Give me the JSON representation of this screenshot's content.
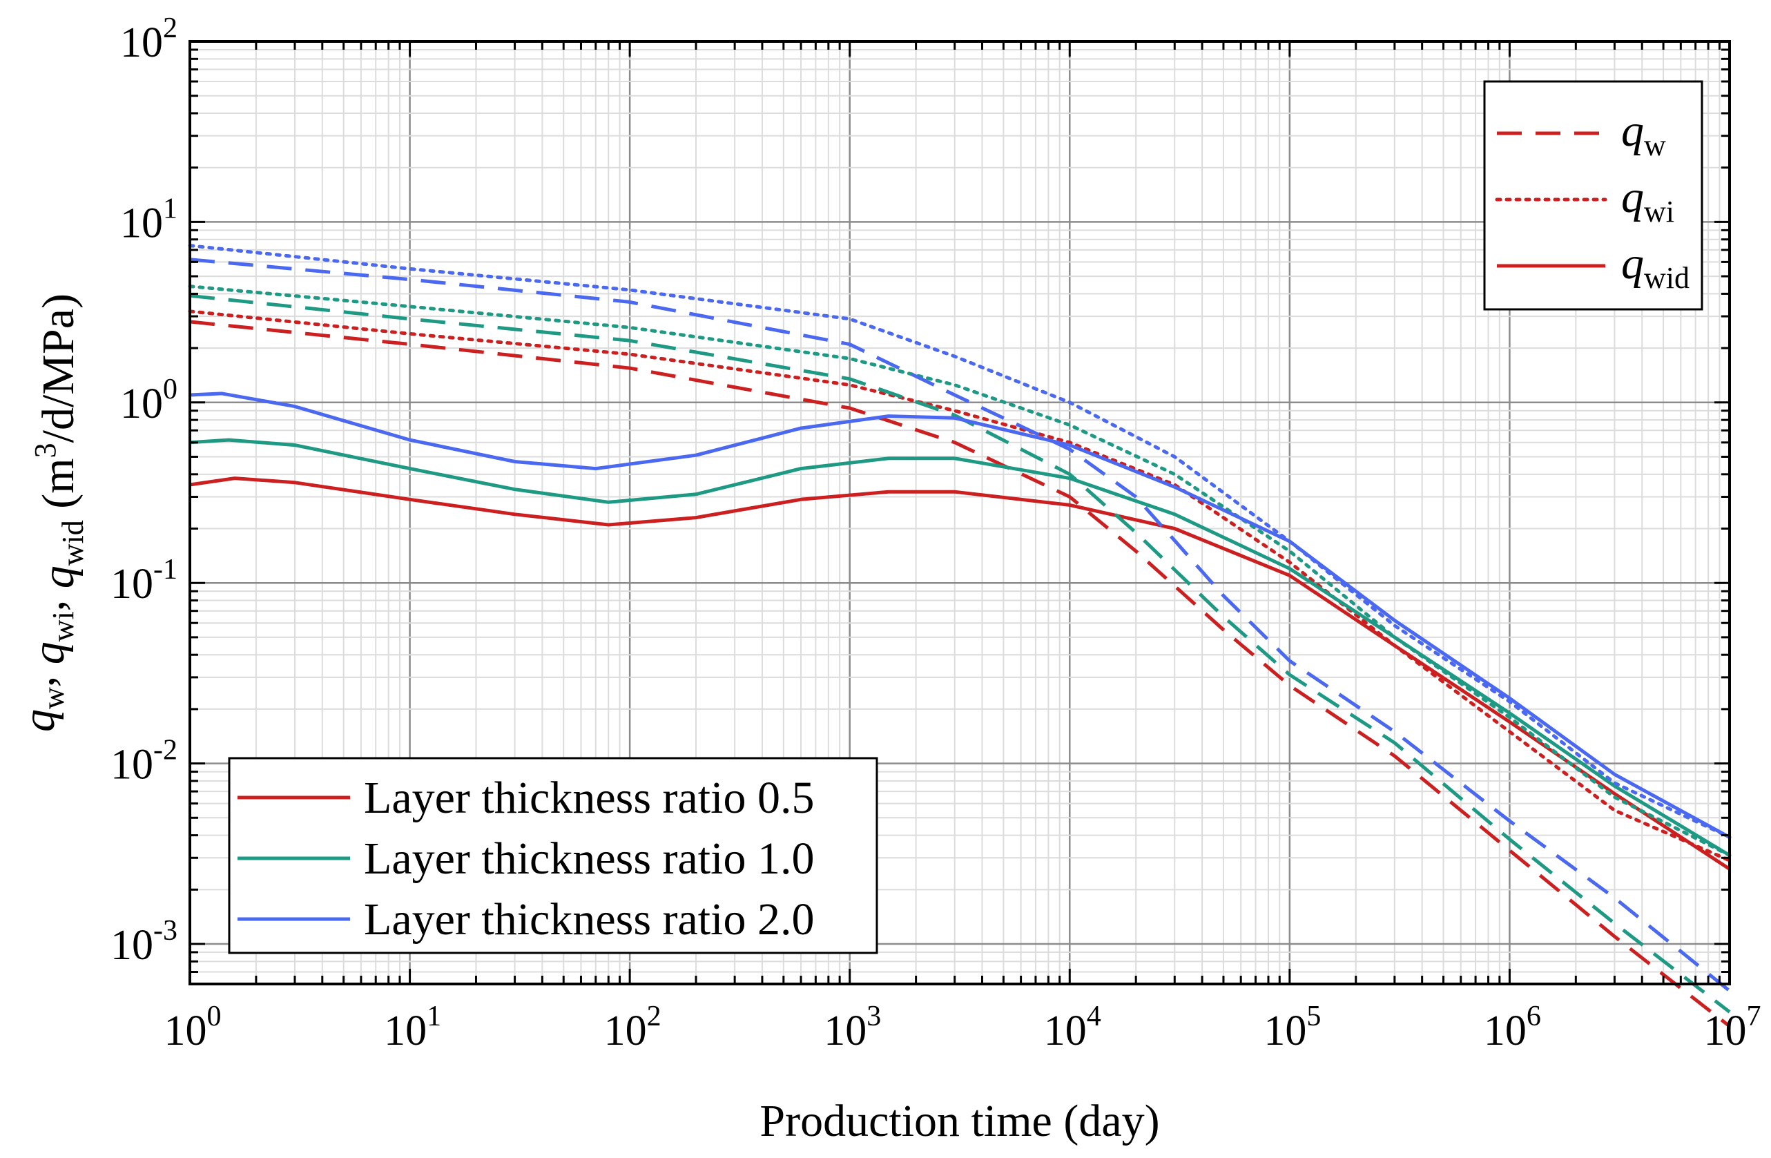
{
  "chart_data": {
    "type": "line",
    "xlabel": "Production time (day)",
    "ylabel": {
      "parts": [
        {
          "text": "q",
          "style": "italic"
        },
        {
          "text": "w",
          "style": "sub"
        },
        {
          "text": ", ",
          "style": "normal"
        },
        {
          "text": "q",
          "style": "italic"
        },
        {
          "text": "wi",
          "style": "sub"
        },
        {
          "text": ", ",
          "style": "normal"
        },
        {
          "text": "q",
          "style": "italic"
        },
        {
          "text": "wid",
          "style": "sub"
        },
        {
          "text": " (m",
          "style": "normal"
        },
        {
          "text": "3",
          "style": "sup"
        },
        {
          "text": "/d/MPa)",
          "style": "normal"
        }
      ]
    },
    "x_scale": "log",
    "y_scale": "log",
    "xlim": [
      1,
      10000000
    ],
    "ylim": [
      0.0006,
      100
    ],
    "grid": true,
    "x_ticks": [
      {
        "base": "10",
        "exp": "0",
        "value": 1
      },
      {
        "base": "10",
        "exp": "1",
        "value": 10
      },
      {
        "base": "10",
        "exp": "2",
        "value": 100
      },
      {
        "base": "10",
        "exp": "3",
        "value": 1000
      },
      {
        "base": "10",
        "exp": "4",
        "value": 10000
      },
      {
        "base": "10",
        "exp": "5",
        "value": 100000
      },
      {
        "base": "10",
        "exp": "6",
        "value": 1000000
      },
      {
        "base": "10",
        "exp": "7",
        "value": 10000000
      }
    ],
    "y_ticks": [
      {
        "base": "10",
        "exp": "2",
        "value": 100
      },
      {
        "base": "10",
        "exp": "1",
        "value": 10
      },
      {
        "base": "10",
        "exp": "0",
        "value": 1
      },
      {
        "base": "10",
        "exp": "-1",
        "value": 0.1
      },
      {
        "base": "10",
        "exp": "-2",
        "value": 0.01
      },
      {
        "base": "10",
        "exp": "-3",
        "value": 0.001
      }
    ],
    "colors": {
      "ratio_0_5": "#cc1f1f",
      "ratio_1_0": "#1e9984",
      "ratio_2_0": "#4a68f0",
      "legend_style_color": "#cc1f1f"
    },
    "legend_styles": {
      "placement": "top-right",
      "items": [
        {
          "label": "q",
          "sub": "w",
          "dash": "dashed"
        },
        {
          "label": "q",
          "sub": "wi",
          "dash": "dotted"
        },
        {
          "label": "q",
          "sub": "wid",
          "dash": "solid"
        }
      ]
    },
    "legend_ratios": {
      "placement": "bottom-left",
      "items": [
        {
          "label": "Layer thickness ratio 0.5",
          "color_key": "ratio_0_5"
        },
        {
          "label": "Layer thickness ratio 1.0",
          "color_key": "ratio_1_0"
        },
        {
          "label": "Layer thickness ratio 2.0",
          "color_key": "ratio_2_0"
        }
      ]
    },
    "series": [
      {
        "group": "ratio 0.5",
        "quantity": "q_w",
        "color_key": "ratio_0_5",
        "dash": "dashed",
        "points": [
          [
            1,
            2.8
          ],
          [
            10,
            2.1
          ],
          [
            100,
            1.55
          ],
          [
            1000,
            0.93
          ],
          [
            3000,
            0.6
          ],
          [
            10000,
            0.3
          ],
          [
            20000,
            0.15
          ],
          [
            50000,
            0.055
          ],
          [
            100000,
            0.027
          ],
          [
            300000,
            0.011
          ],
          [
            1000000,
            0.0033
          ],
          [
            3000000,
            0.0011
          ],
          [
            10000000,
            0.00035
          ]
        ]
      },
      {
        "group": "ratio 0.5",
        "quantity": "q_wi",
        "color_key": "ratio_0_5",
        "dash": "dotted",
        "points": [
          [
            1,
            3.2
          ],
          [
            10,
            2.4
          ],
          [
            100,
            1.85
          ],
          [
            1000,
            1.25
          ],
          [
            3000,
            0.9
          ],
          [
            10000,
            0.6
          ],
          [
            30000,
            0.35
          ],
          [
            100000,
            0.13
          ],
          [
            300000,
            0.045
          ],
          [
            1000000,
            0.015
          ],
          [
            3000000,
            0.0055
          ],
          [
            10000000,
            0.0029
          ]
        ]
      },
      {
        "group": "ratio 0.5",
        "quantity": "q_wid",
        "color_key": "ratio_0_5",
        "dash": "solid",
        "points": [
          [
            1,
            0.35
          ],
          [
            1.6,
            0.38
          ],
          [
            3,
            0.36
          ],
          [
            10,
            0.29
          ],
          [
            30,
            0.24
          ],
          [
            80,
            0.21
          ],
          [
            200,
            0.23
          ],
          [
            600,
            0.29
          ],
          [
            1500,
            0.32
          ],
          [
            3000,
            0.32
          ],
          [
            10000,
            0.27
          ],
          [
            30000,
            0.2
          ],
          [
            100000,
            0.11
          ],
          [
            300000,
            0.045
          ],
          [
            1000000,
            0.017
          ],
          [
            3000000,
            0.0068
          ],
          [
            10000000,
            0.0026
          ]
        ]
      },
      {
        "group": "ratio 1.0",
        "quantity": "q_w",
        "color_key": "ratio_1_0",
        "dash": "dashed",
        "points": [
          [
            1,
            3.9
          ],
          [
            10,
            2.9
          ],
          [
            100,
            2.2
          ],
          [
            1000,
            1.35
          ],
          [
            3000,
            0.85
          ],
          [
            10000,
            0.4
          ],
          [
            20000,
            0.19
          ],
          [
            50000,
            0.065
          ],
          [
            100000,
            0.031
          ],
          [
            300000,
            0.013
          ],
          [
            1000000,
            0.0038
          ],
          [
            3000000,
            0.0013
          ],
          [
            10000000,
            0.00042
          ]
        ]
      },
      {
        "group": "ratio 1.0",
        "quantity": "q_wi",
        "color_key": "ratio_1_0",
        "dash": "dotted",
        "points": [
          [
            1,
            4.4
          ],
          [
            10,
            3.4
          ],
          [
            100,
            2.6
          ],
          [
            1000,
            1.75
          ],
          [
            3000,
            1.25
          ],
          [
            10000,
            0.75
          ],
          [
            30000,
            0.4
          ],
          [
            100000,
            0.15
          ],
          [
            300000,
            0.05
          ],
          [
            1000000,
            0.018
          ],
          [
            3000000,
            0.0065
          ],
          [
            10000000,
            0.0031
          ]
        ]
      },
      {
        "group": "ratio 1.0",
        "quantity": "q_wid",
        "color_key": "ratio_1_0",
        "dash": "solid",
        "points": [
          [
            1,
            0.6
          ],
          [
            1.5,
            0.62
          ],
          [
            3,
            0.58
          ],
          [
            10,
            0.43
          ],
          [
            30,
            0.33
          ],
          [
            80,
            0.28
          ],
          [
            200,
            0.31
          ],
          [
            600,
            0.43
          ],
          [
            1500,
            0.49
          ],
          [
            3000,
            0.49
          ],
          [
            10000,
            0.38
          ],
          [
            30000,
            0.24
          ],
          [
            100000,
            0.12
          ],
          [
            300000,
            0.05
          ],
          [
            1000000,
            0.019
          ],
          [
            3000000,
            0.0075
          ],
          [
            10000000,
            0.0031
          ]
        ]
      },
      {
        "group": "ratio 2.0",
        "quantity": "q_w",
        "color_key": "ratio_2_0",
        "dash": "dashed",
        "points": [
          [
            1,
            6.2
          ],
          [
            10,
            4.8
          ],
          [
            100,
            3.6
          ],
          [
            1000,
            2.1
          ],
          [
            3000,
            1.1
          ],
          [
            10000,
            0.55
          ],
          [
            20000,
            0.3
          ],
          [
            50000,
            0.085
          ],
          [
            100000,
            0.037
          ],
          [
            300000,
            0.015
          ],
          [
            1000000,
            0.0048
          ],
          [
            3000000,
            0.0018
          ],
          [
            10000000,
            0.00055
          ]
        ]
      },
      {
        "group": "ratio 2.0",
        "quantity": "q_wi",
        "color_key": "ratio_2_0",
        "dash": "dotted",
        "points": [
          [
            1,
            7.4
          ],
          [
            10,
            5.5
          ],
          [
            100,
            4.2
          ],
          [
            1000,
            2.9
          ],
          [
            3000,
            1.8
          ],
          [
            10000,
            1.0
          ],
          [
            30000,
            0.5
          ],
          [
            100000,
            0.17
          ],
          [
            300000,
            0.058
          ],
          [
            1000000,
            0.022
          ],
          [
            3000000,
            0.0078
          ],
          [
            10000000,
            0.0039
          ]
        ]
      },
      {
        "group": "ratio 2.0",
        "quantity": "q_wid",
        "color_key": "ratio_2_0",
        "dash": "solid",
        "points": [
          [
            1,
            1.1
          ],
          [
            1.4,
            1.12
          ],
          [
            3,
            0.95
          ],
          [
            10,
            0.62
          ],
          [
            30,
            0.47
          ],
          [
            70,
            0.43
          ],
          [
            200,
            0.51
          ],
          [
            600,
            0.72
          ],
          [
            1500,
            0.84
          ],
          [
            3000,
            0.82
          ],
          [
            10000,
            0.58
          ],
          [
            30000,
            0.34
          ],
          [
            100000,
            0.17
          ],
          [
            300000,
            0.062
          ],
          [
            1000000,
            0.023
          ],
          [
            3000000,
            0.0087
          ],
          [
            10000000,
            0.0039
          ]
        ]
      }
    ]
  }
}
